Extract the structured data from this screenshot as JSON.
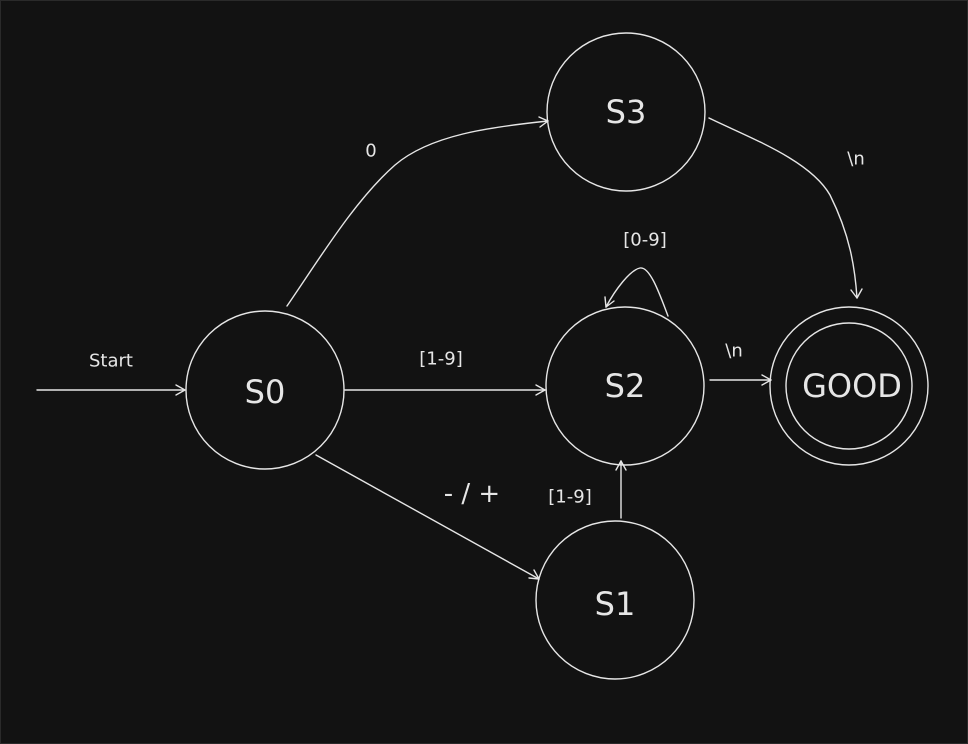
{
  "states": {
    "s0": "S0",
    "s1": "S1",
    "s2": "S2",
    "s3": "S3",
    "good": "GOOD"
  },
  "transitions": {
    "start": "Start",
    "s0_to_s3": "0",
    "s0_to_s2": "[1-9]",
    "s0_to_s1": "- / +",
    "s1_to_s2": "[1-9]",
    "s2_loop": "[0-9]",
    "s2_to_good": "\\n",
    "s3_to_good": "\\n"
  },
  "colors": {
    "background": "#121212",
    "stroke": "#e6e6e6"
  }
}
